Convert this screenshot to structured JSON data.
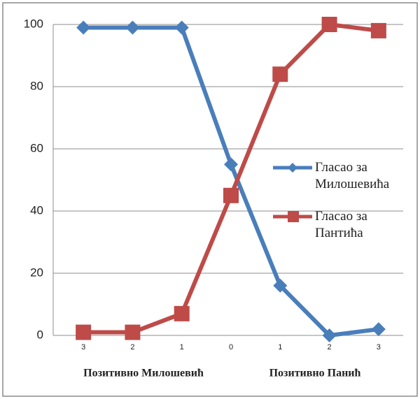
{
  "chart_data": {
    "type": "line",
    "categories": [
      "3",
      "2",
      "1",
      "0",
      "1",
      "2",
      "3"
    ],
    "series": [
      {
        "name": "Гласао за Милошевића",
        "color": "#4a7ebb",
        "marker": "diamond",
        "values": [
          99,
          99,
          99,
          55,
          16,
          0,
          2
        ]
      },
      {
        "name": "Гласао за Пантића",
        "color": "#be4b48",
        "marker": "square",
        "values": [
          1,
          1,
          7,
          45,
          84,
          100,
          98
        ]
      }
    ],
    "ylim": [
      0,
      100
    ],
    "yticks": [
      0,
      20,
      40,
      60,
      80,
      100
    ],
    "grid": true,
    "legend": "right",
    "annotations": [
      "Позитивно Милошевић",
      "Позитивно Панић"
    ]
  }
}
